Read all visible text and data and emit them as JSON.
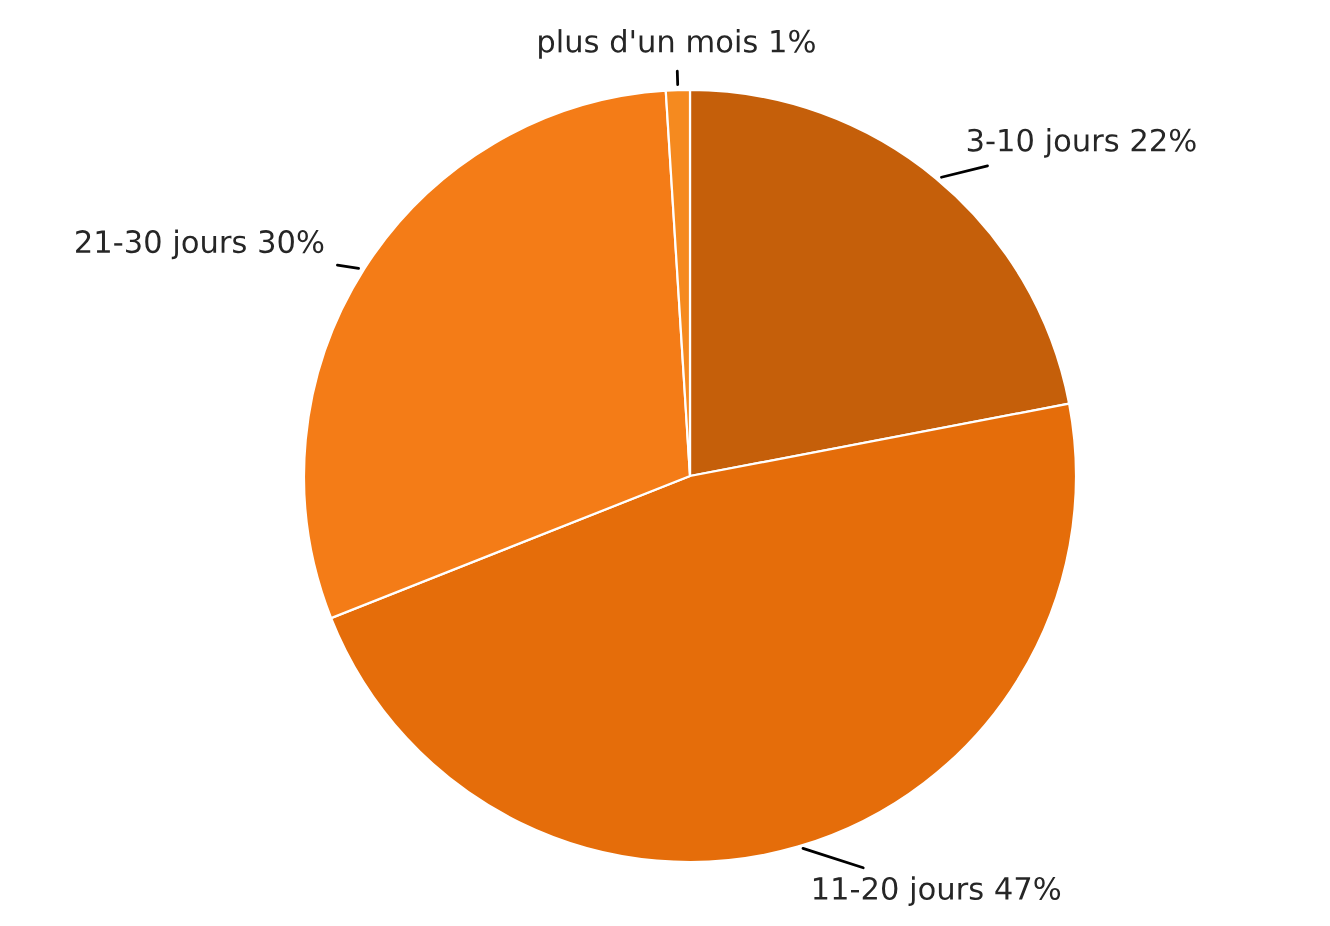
{
  "chart_data": {
    "type": "pie",
    "categories": [
      "3-10 jours",
      "11-20 jours",
      "21-30 jours",
      "plus d'un mois"
    ],
    "values": [
      22,
      47,
      30,
      1
    ],
    "value_labels": [
      "22%",
      "47%",
      "30%",
      "1%"
    ],
    "colors": [
      "#c55f0a",
      "#e56d0a",
      "#f47c17",
      "#f58a1f"
    ],
    "legend": false
  }
}
